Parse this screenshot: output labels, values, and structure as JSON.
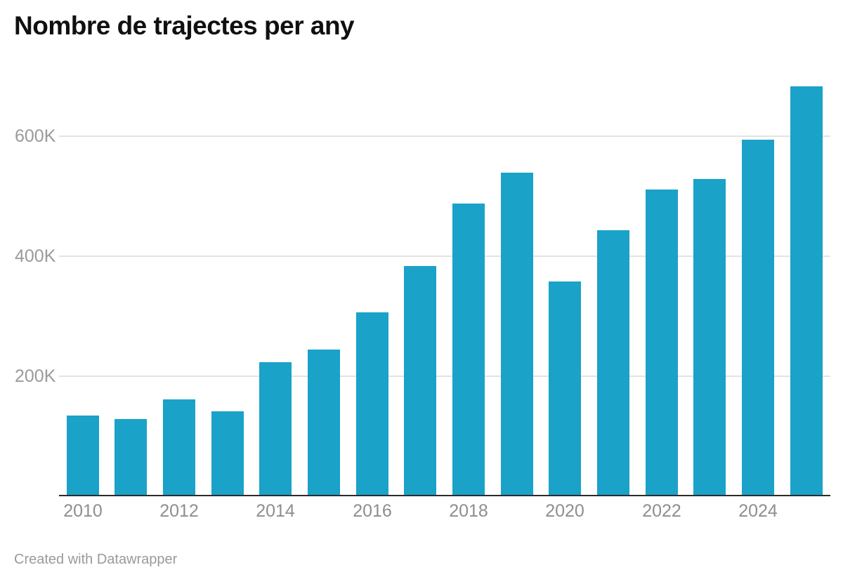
{
  "title": "Nombre de trajectes per any",
  "footer": {
    "attribution": "Created with Datawrapper"
  },
  "colors": {
    "bar": "#1aa2c8",
    "grid": "#e3e3e3",
    "axis": "#2b2b2b",
    "y_label": "#9a9a9a",
    "x_label": "#8e8e8e",
    "title": "#101010"
  },
  "chart_data": {
    "type": "bar",
    "title": "Nombre de trajectes per any",
    "xlabel": "",
    "ylabel": "",
    "categories": [
      2010,
      2011,
      2012,
      2013,
      2014,
      2015,
      2016,
      2017,
      2018,
      2019,
      2020,
      2021,
      2022,
      2023,
      2024,
      2025
    ],
    "values": [
      132000,
      126000,
      159000,
      139000,
      221000,
      243000,
      304000,
      382000,
      486000,
      538000,
      356000,
      441000,
      509000,
      527000,
      593000,
      682000
    ],
    "ylim": [
      0,
      710000
    ],
    "yticks": [
      {
        "value": 200000,
        "label": "200K"
      },
      {
        "value": 400000,
        "label": "400K"
      },
      {
        "value": 600000,
        "label": "600K"
      }
    ],
    "xtick_labels": [
      "2010",
      "2012",
      "2014",
      "2016",
      "2018",
      "2020",
      "2022",
      "2024"
    ],
    "grid": "horizontal",
    "legend": "none",
    "bar_color": "#1aa2c8"
  }
}
